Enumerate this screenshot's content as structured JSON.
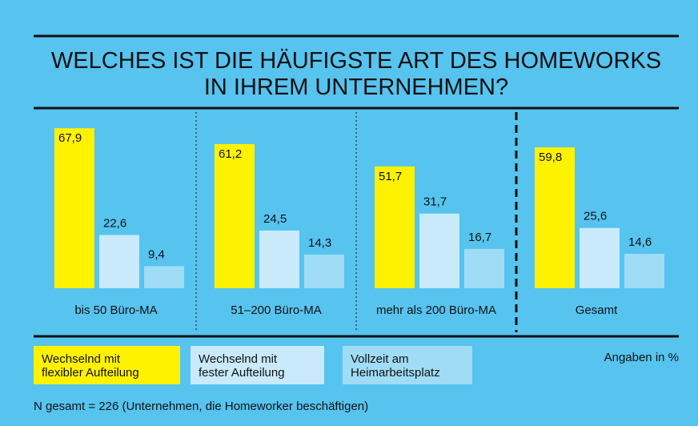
{
  "chart_data": {
    "type": "bar",
    "title": "WELCHES IST DIE HÄUFIGSTE ART DES HOMEWORKS\nIN IHREM UNTERNEHMEN?",
    "categories": [
      "bis 50 Büro-MA",
      "51–200 Büro-MA",
      "mehr als 200 Büro-MA",
      "Gesamt"
    ],
    "series": [
      {
        "name": "Wechselnd mit\nflexibler Aufteilung",
        "color": "#fff200",
        "values": [
          67.9,
          61.2,
          51.7,
          59.8
        ],
        "value_labels": [
          "67,9",
          "61,2",
          "51,7",
          "59,8"
        ]
      },
      {
        "name": "Wechselnd mit\nfester Aufteilung",
        "color": "#c8eafa",
        "values": [
          22.6,
          24.5,
          31.7,
          25.6
        ],
        "value_labels": [
          "22,6",
          "24,5",
          "31,7",
          "25,6"
        ]
      },
      {
        "name": "Vollzeit am\nHeimarbeitsplatz",
        "color": "#a0dcf5",
        "values": [
          9.4,
          14.3,
          16.7,
          14.6
        ],
        "value_labels": [
          "9,4",
          "14,3",
          "16,7",
          "14,6"
        ]
      }
    ],
    "ylim": [
      0,
      70
    ],
    "unit_note": "Angaben in %",
    "footnote": "N gesamt = 226 (Unternehmen, die Homeworker beschäftigen)"
  }
}
